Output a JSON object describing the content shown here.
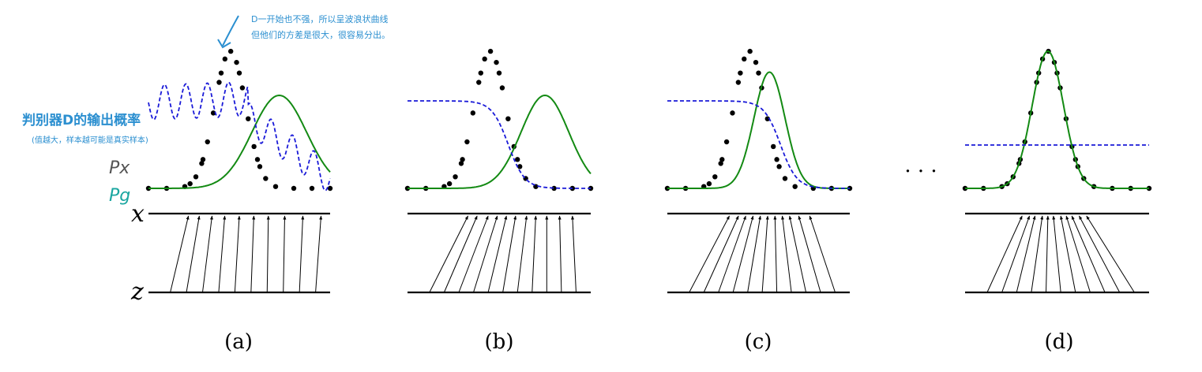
{
  "axes": {
    "x_label": "x",
    "z_label": "z"
  },
  "panels": [
    {
      "id": "a",
      "caption": "(a)",
      "gen_mean": 0.72,
      "gen_sd": 0.15,
      "disc": "wavy",
      "map_tops": [
        0.22,
        0.28,
        0.35,
        0.42,
        0.5,
        0.58,
        0.66,
        0.75,
        0.85,
        0.95
      ]
    },
    {
      "id": "b",
      "caption": "(b)",
      "gen_mean": 0.75,
      "gen_sd": 0.13,
      "disc": "sigmoid",
      "disc_mid": 0.55,
      "map_tops": [
        0.33,
        0.38,
        0.44,
        0.49,
        0.54,
        0.59,
        0.65,
        0.7,
        0.76,
        0.83,
        0.9
      ]
    },
    {
      "id": "c",
      "caption": "(c)",
      "gen_mean": 0.56,
      "gen_sd": 0.085,
      "disc": "sigmoid",
      "disc_mid": 0.62,
      "map_tops": [
        0.34,
        0.39,
        0.43,
        0.47,
        0.51,
        0.55,
        0.59,
        0.63,
        0.67,
        0.72,
        0.78
      ]
    },
    {
      "id": "d",
      "caption": "(d)",
      "gen_mean": 0.45,
      "gen_sd": 0.085,
      "disc": "flat",
      "disc_level": 0.5,
      "map_tops": [
        0.31,
        0.35,
        0.38,
        0.42,
        0.45,
        0.48,
        0.52,
        0.55,
        0.58,
        0.62,
        0.66
      ]
    }
  ],
  "ellipsis": "· · ·",
  "data_dist": {
    "mean": 0.45,
    "sd": 0.085
  },
  "annotations": {
    "top_note_line1": "D一开始也不强，所以呈波浪状曲线",
    "top_note_line2": "但他们的方差是很大，很容易分出。",
    "disc_label": "判别器D的输出概率",
    "disc_sub": "(值越大，样本越可能是真实样本)",
    "legend_px": "Px",
    "legend_pg": "Pg"
  },
  "colors": {
    "data": "#000000",
    "generator": "#138a13",
    "discriminator": "#1a1ad8",
    "note": "#2b8fd0",
    "legend_pg": "#1aa6a0"
  }
}
